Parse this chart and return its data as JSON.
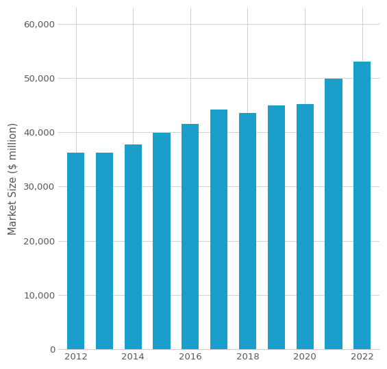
{
  "years": [
    2012,
    2013,
    2014,
    2015,
    2016,
    2017,
    2018,
    2019,
    2020,
    2021,
    2022
  ],
  "values": [
    36200,
    36300,
    37700,
    39900,
    41500,
    44200,
    43600,
    44900,
    45200,
    49900,
    53100
  ],
  "bar_color": "#1a9fca",
  "ylabel": "Market Size ($ million)",
  "ylim": [
    0,
    63000
  ],
  "yticks": [
    0,
    10000,
    20000,
    30000,
    40000,
    50000,
    60000
  ],
  "xtick_labels": [
    "2012",
    "2014",
    "2016",
    "2018",
    "2020",
    "2022"
  ],
  "background_color": "#ffffff",
  "grid_color": "#d0d0d0",
  "bar_width": 0.6,
  "xlim_left": 2011.4,
  "xlim_right": 2022.6
}
